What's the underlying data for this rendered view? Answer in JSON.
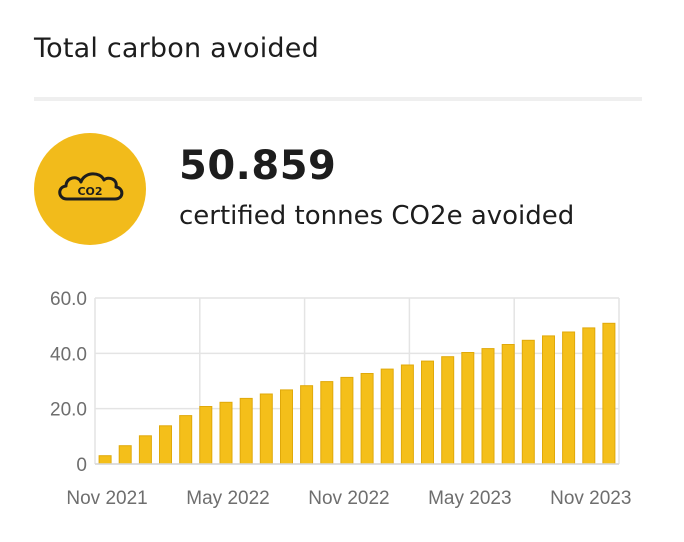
{
  "card": {
    "title": "Total carbon avoided"
  },
  "stat": {
    "icon": "co2-cloud-icon",
    "icon_text": "CO2",
    "value": "50.859",
    "label": "certified tonnes CO2e avoided"
  },
  "colors": {
    "accent": "#f2bb1b",
    "bar": "#f4bf1a",
    "bar_edge": "#e0a90a"
  },
  "chart_data": {
    "type": "bar",
    "title": "",
    "xlabel": "",
    "ylabel": "",
    "ylim": [
      0,
      60
    ],
    "yticks": [
      "60.0",
      "40.0",
      "20.0",
      "0"
    ],
    "xticks": [
      "Nov 2021",
      "May 2022",
      "Nov 2022",
      "May 2023",
      "Nov 2023"
    ],
    "grid": true,
    "categories": [
      "Nov 2021",
      "Dec 2021",
      "Jan 2022",
      "Feb 2022",
      "Mar 2022",
      "Apr 2022",
      "May 2022",
      "Jun 2022",
      "Jul 2022",
      "Aug 2022",
      "Sep 2022",
      "Oct 2022",
      "Nov 2022",
      "Dec 2022",
      "Jan 2023",
      "Feb 2023",
      "Mar 2023",
      "Apr 2023",
      "May 2023",
      "Jun 2023",
      "Jul 2023",
      "Aug 2023",
      "Sep 2023",
      "Oct 2023",
      "Nov 2023",
      "Dec 2023"
    ],
    "values": [
      3.0,
      6.6,
      10.2,
      13.8,
      17.5,
      20.8,
      22.3,
      23.7,
      25.3,
      26.8,
      28.3,
      29.8,
      31.3,
      32.7,
      34.3,
      35.8,
      37.2,
      38.8,
      40.3,
      41.7,
      43.2,
      44.7,
      46.3,
      47.7,
      49.2,
      50.859
    ]
  }
}
